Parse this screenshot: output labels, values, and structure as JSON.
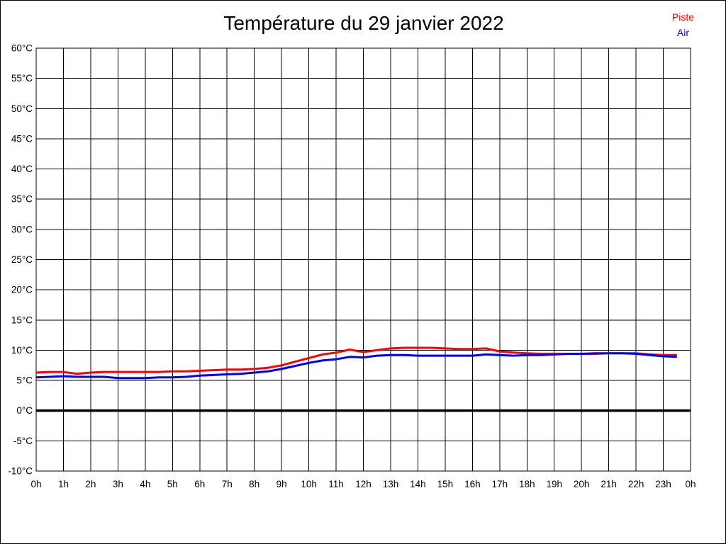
{
  "window": {
    "kind": "static-chart-image"
  },
  "legend": [
    {
      "label": "Piste",
      "color": "#ff0000"
    },
    {
      "label": "Air",
      "color": "#0000ff"
    }
  ],
  "colors": {
    "background": "#ffffff",
    "grid": "#000000",
    "zero_line": "#000000",
    "piste": "#ff0000",
    "air": "#0000ff",
    "title": "#000000"
  },
  "chart_data": {
    "type": "line",
    "title": "Température du 29 janvier 2022",
    "xlabel": "",
    "ylabel": "",
    "xlim": [
      0,
      24
    ],
    "ylim": [
      -10,
      60
    ],
    "grid": true,
    "legend_position": "top-right",
    "x_tick_hours": [
      0,
      1,
      2,
      3,
      4,
      5,
      6,
      7,
      8,
      9,
      10,
      11,
      12,
      13,
      14,
      15,
      16,
      17,
      18,
      19,
      20,
      21,
      22,
      23,
      24
    ],
    "x_tick_labels": [
      "0h",
      "1h",
      "2h",
      "3h",
      "4h",
      "5h",
      "6h",
      "7h",
      "8h",
      "9h",
      "10h",
      "11h",
      "12h",
      "13h",
      "14h",
      "15h",
      "16h",
      "17h",
      "18h",
      "19h",
      "20h",
      "21h",
      "22h",
      "23h",
      "0h"
    ],
    "y_ticks": [
      60,
      55,
      50,
      45,
      40,
      35,
      30,
      25,
      20,
      15,
      10,
      5,
      0,
      -5,
      -10
    ],
    "y_tick_suffix": "°C",
    "zero_line": {
      "value": 0,
      "width": 3.5
    },
    "x": [
      0,
      0.5,
      1,
      1.5,
      2,
      2.5,
      3,
      3.5,
      4,
      4.5,
      5,
      5.5,
      6,
      6.5,
      7,
      7.5,
      8,
      8.5,
      9,
      9.5,
      10,
      10.5,
      11,
      11.5,
      12,
      12.5,
      13,
      13.5,
      14,
      14.5,
      15,
      15.5,
      16,
      16.5,
      17,
      17.5,
      18,
      18.5,
      19,
      19.5,
      20,
      20.5,
      21,
      21.5,
      22,
      22.5,
      23,
      23.5
    ],
    "series": [
      {
        "name": "Piste",
        "color": "#ff0000",
        "values": [
          6.3,
          6.4,
          6.4,
          6.1,
          6.3,
          6.4,
          6.4,
          6.4,
          6.4,
          6.4,
          6.5,
          6.5,
          6.6,
          6.7,
          6.8,
          6.8,
          6.9,
          7.1,
          7.5,
          8.1,
          8.7,
          9.3,
          9.6,
          10.1,
          9.7,
          10.0,
          10.3,
          10.4,
          10.4,
          10.4,
          10.3,
          10.2,
          10.2,
          10.3,
          9.8,
          9.6,
          9.5,
          9.4,
          9.4,
          9.4,
          9.4,
          9.4,
          9.5,
          9.5,
          9.5,
          9.3,
          9.2,
          9.2
        ]
      },
      {
        "name": "Air",
        "color": "#0000ff",
        "values": [
          5.5,
          5.6,
          5.7,
          5.6,
          5.6,
          5.6,
          5.4,
          5.4,
          5.4,
          5.5,
          5.5,
          5.6,
          5.8,
          5.9,
          6.0,
          6.1,
          6.3,
          6.5,
          6.9,
          7.4,
          7.9,
          8.3,
          8.5,
          8.9,
          8.8,
          9.1,
          9.2,
          9.2,
          9.1,
          9.1,
          9.1,
          9.1,
          9.1,
          9.3,
          9.2,
          9.1,
          9.2,
          9.2,
          9.3,
          9.4,
          9.4,
          9.5,
          9.5,
          9.5,
          9.4,
          9.2,
          9.0,
          8.9
        ]
      }
    ]
  }
}
